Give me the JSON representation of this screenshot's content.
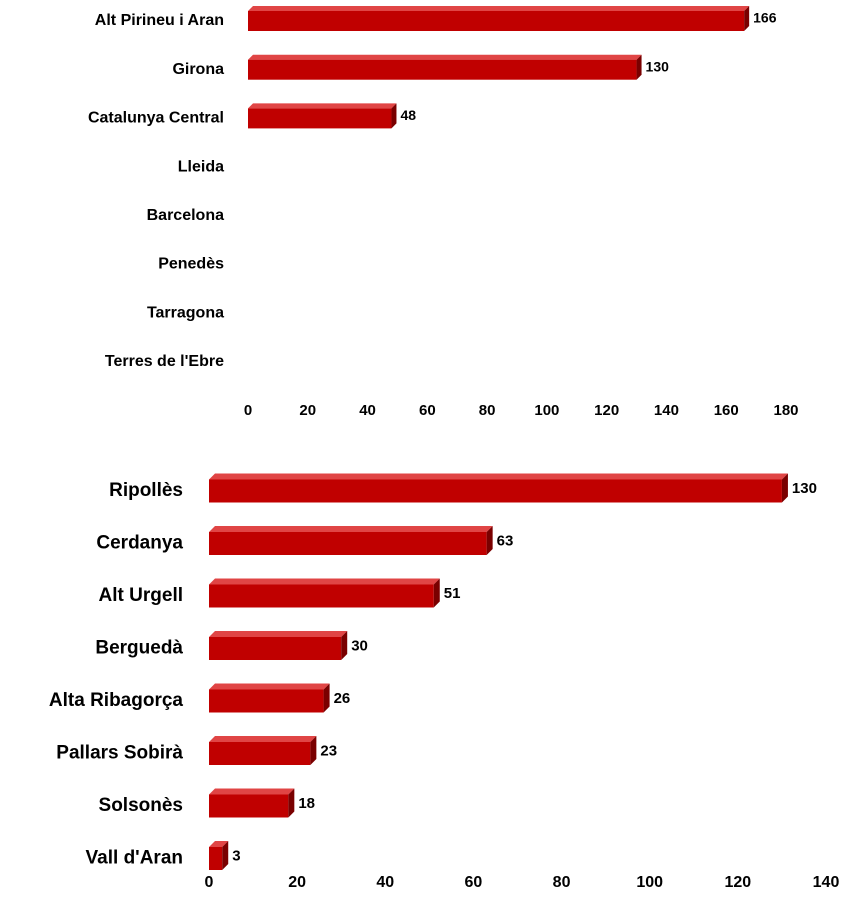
{
  "colors": {
    "bar_front": "#c00000",
    "bar_top": "#e04545",
    "bar_side": "#7a0000",
    "text": "#000000"
  },
  "chart_data": [
    {
      "type": "bar",
      "orientation": "horizontal",
      "style": "3d",
      "categories": [
        "Alt Pirineu i Aran",
        "Girona",
        "Catalunya Central",
        "Lleida",
        "Barcelona",
        "Penedès",
        "Tarragona",
        "Terres de l'Ebre"
      ],
      "values": [
        166,
        130,
        48,
        0,
        0,
        0,
        0,
        0
      ],
      "data_labels": [
        "166",
        "130",
        "48",
        "",
        "",
        "",
        "",
        ""
      ],
      "xlim": [
        0,
        180
      ],
      "xticks": [
        0,
        20,
        40,
        60,
        80,
        100,
        120,
        140,
        160,
        180
      ],
      "grid": false,
      "legend": "none"
    },
    {
      "type": "bar",
      "orientation": "horizontal",
      "style": "3d",
      "categories": [
        "Ripollès",
        "Cerdanya",
        "Alt Urgell",
        "Berguedà",
        "Alta Ribagorça",
        "Pallars Sobirà",
        "Solsonès",
        "Vall d'Aran"
      ],
      "values": [
        130,
        63,
        51,
        30,
        26,
        23,
        18,
        3
      ],
      "data_labels": [
        "130",
        "63",
        "51",
        "30",
        "26",
        "23",
        "18",
        "3"
      ],
      "xlim": [
        0,
        140
      ],
      "xticks": [
        0,
        20,
        40,
        60,
        80,
        100,
        120,
        140
      ],
      "grid": false,
      "legend": "none"
    }
  ]
}
